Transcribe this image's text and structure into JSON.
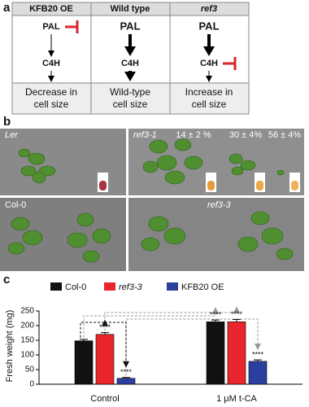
{
  "panel_labels": [
    "a",
    "b",
    "c"
  ],
  "panel_a": {
    "columns": [
      {
        "header": "KFB20 OE",
        "top": "PAL",
        "middle": "C4H",
        "outcome": [
          "Decrease in",
          "cell size"
        ]
      },
      {
        "header": "Wild type",
        "top": "PAL",
        "middle": "C4H",
        "outcome": [
          "Wild-type",
          "cell size"
        ]
      },
      {
        "header": "ref3",
        "top": "PAL",
        "middle": "C4H",
        "outcome": [
          "Increase in",
          "cell size"
        ]
      }
    ]
  },
  "panel_b": {
    "photos": [
      {
        "labels": [
          "Ler"
        ]
      },
      {
        "labels": [
          "ref3-1",
          "14 ± 2 %",
          "30 ± 4%",
          "56 ± 4%"
        ]
      },
      {
        "labels": [
          "Col-0"
        ]
      },
      {
        "labels": [
          "ref3-3"
        ]
      }
    ]
  },
  "chart_data": {
    "type": "bar",
    "ylabel": "Fresh weight (mg)",
    "categories": [
      "Control",
      "1 μM t-CA"
    ],
    "series": [
      {
        "name": "Col-0",
        "color": "#111111",
        "values": [
          148,
          213
        ],
        "errors": [
          5,
          6
        ],
        "significance": [
          null,
          "****"
        ]
      },
      {
        "name": "ref3-3",
        "color": "#e8262b",
        "values": [
          170,
          213
        ],
        "errors": [
          6,
          8
        ],
        "significance": [
          "****",
          "****"
        ]
      },
      {
        "name": "KFB20 OE",
        "color": "#2b3f9e",
        "values": [
          20,
          78
        ],
        "errors": [
          3,
          5
        ],
        "significance": [
          "****",
          "****"
        ]
      }
    ],
    "ylim": [
      0,
      250
    ],
    "yticks": [
      0,
      50,
      100,
      150,
      200,
      250
    ],
    "legend": "top"
  }
}
